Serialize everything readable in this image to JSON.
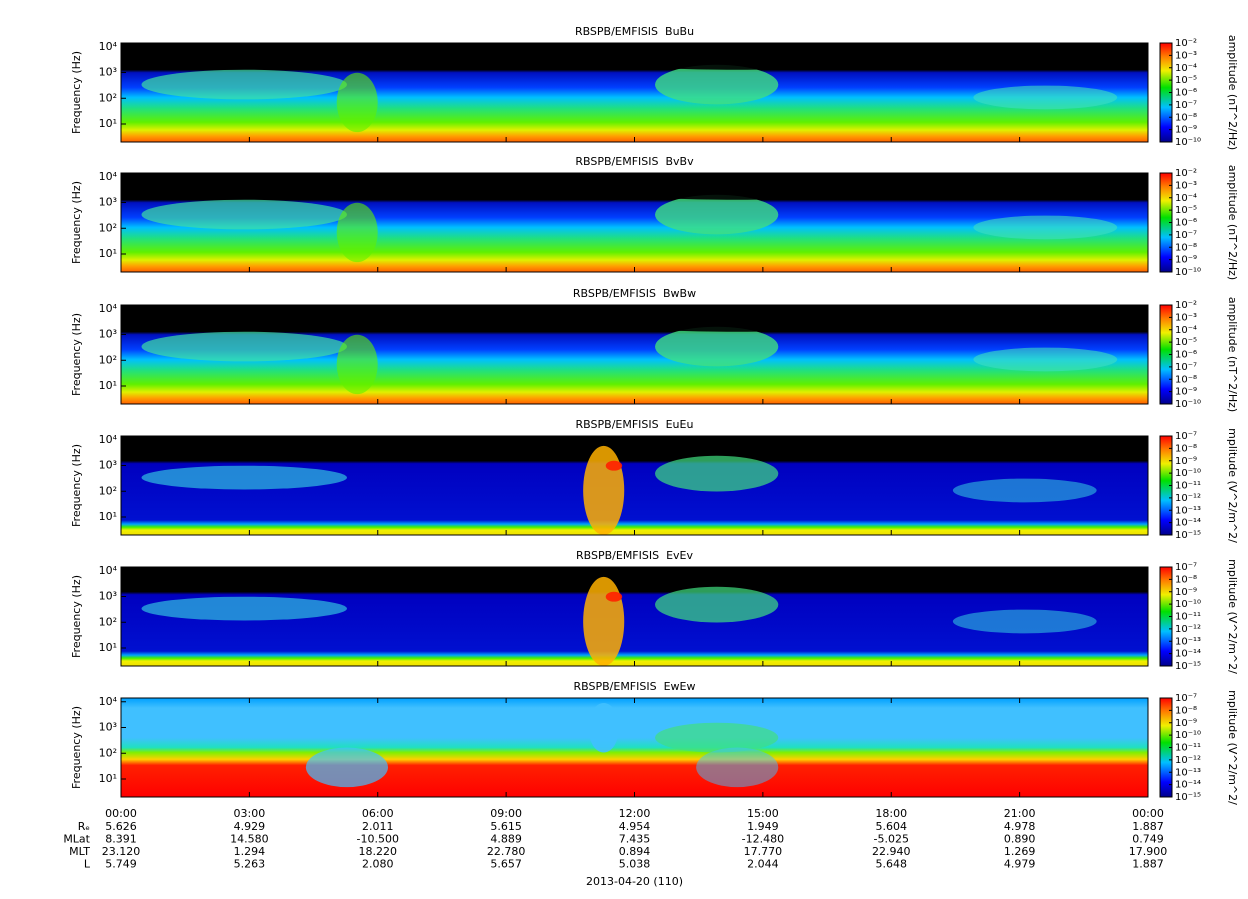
{
  "chart_data": [
    {
      "type": "spectrogram",
      "title": "RBSPB/EMFISIS  BuBu",
      "ylabel": "Frequency (Hz)",
      "log_y": true,
      "ylim": [
        2,
        14000
      ],
      "yticks": [
        {
          "value": 10,
          "label": "10¹"
        },
        {
          "value": 100,
          "label": "10²"
        },
        {
          "value": 1000,
          "label": "10³"
        },
        {
          "value": 10000,
          "label": "10⁴"
        }
      ],
      "zlabel": "amplitude (nT^2/Hz)",
      "zlim": [
        1e-10,
        0.01
      ],
      "zticks": [
        {
          "value": 0.01,
          "label": "10⁻²"
        },
        {
          "value": 0.001,
          "label": "10⁻³"
        },
        {
          "value": 0.0001,
          "label": "10⁻⁴"
        },
        {
          "value": 1e-05,
          "label": "10⁻⁵"
        },
        {
          "value": 1e-06,
          "label": "10⁻⁶"
        },
        {
          "value": 1e-07,
          "label": "10⁻⁷"
        },
        {
          "value": 1e-08,
          "label": "10⁻⁸"
        },
        {
          "value": 1e-09,
          "label": "10⁻⁹"
        },
        {
          "value": 1e-10,
          "label": "10⁻¹⁰"
        }
      ]
    },
    {
      "type": "spectrogram",
      "title": "RBSPB/EMFISIS  BvBv",
      "ylabel": "Frequency (Hz)",
      "log_y": true,
      "ylim": [
        2,
        14000
      ],
      "yticks": [
        {
          "value": 10,
          "label": "10¹"
        },
        {
          "value": 100,
          "label": "10²"
        },
        {
          "value": 1000,
          "label": "10³"
        },
        {
          "value": 10000,
          "label": "10⁴"
        }
      ],
      "zlabel": "amplitude (nT^2/Hz)",
      "zlim": [
        1e-10,
        0.01
      ],
      "zticks": [
        {
          "value": 0.01,
          "label": "10⁻²"
        },
        {
          "value": 0.001,
          "label": "10⁻³"
        },
        {
          "value": 0.0001,
          "label": "10⁻⁴"
        },
        {
          "value": 1e-05,
          "label": "10⁻⁵"
        },
        {
          "value": 1e-06,
          "label": "10⁻⁶"
        },
        {
          "value": 1e-07,
          "label": "10⁻⁷"
        },
        {
          "value": 1e-08,
          "label": "10⁻⁸"
        },
        {
          "value": 1e-09,
          "label": "10⁻⁹"
        },
        {
          "value": 1e-10,
          "label": "10⁻¹⁰"
        }
      ]
    },
    {
      "type": "spectrogram",
      "title": "RBSPB/EMFISIS  BwBw",
      "ylabel": "Frequency (Hz)",
      "log_y": true,
      "ylim": [
        2,
        14000
      ],
      "yticks": [
        {
          "value": 10,
          "label": "10¹"
        },
        {
          "value": 100,
          "label": "10²"
        },
        {
          "value": 1000,
          "label": "10³"
        },
        {
          "value": 10000,
          "label": "10⁴"
        }
      ],
      "zlabel": "amplitude (nT^2/Hz)",
      "zlim": [
        1e-10,
        0.01
      ],
      "zticks": [
        {
          "value": 0.01,
          "label": "10⁻²"
        },
        {
          "value": 0.001,
          "label": "10⁻³"
        },
        {
          "value": 0.0001,
          "label": "10⁻⁴"
        },
        {
          "value": 1e-05,
          "label": "10⁻⁵"
        },
        {
          "value": 1e-06,
          "label": "10⁻⁶"
        },
        {
          "value": 1e-07,
          "label": "10⁻⁷"
        },
        {
          "value": 1e-08,
          "label": "10⁻⁸"
        },
        {
          "value": 1e-09,
          "label": "10⁻⁹"
        },
        {
          "value": 1e-10,
          "label": "10⁻¹⁰"
        }
      ]
    },
    {
      "type": "spectrogram",
      "title": "RBSPB/EMFISIS  EuEu",
      "ylabel": "Frequency (Hz)",
      "log_y": true,
      "ylim": [
        2,
        14000
      ],
      "yticks": [
        {
          "value": 10,
          "label": "10¹"
        },
        {
          "value": 100,
          "label": "10²"
        },
        {
          "value": 1000,
          "label": "10³"
        },
        {
          "value": 10000,
          "label": "10⁴"
        }
      ],
      "zlabel": "mplitude (V^2/m^2/",
      "zlim": [
        1e-15,
        1e-07
      ],
      "zticks": [
        {
          "value": 1e-07,
          "label": "10⁻⁷"
        },
        {
          "value": 1e-08,
          "label": "10⁻⁸"
        },
        {
          "value": 1e-09,
          "label": "10⁻⁹"
        },
        {
          "value": 1e-10,
          "label": "10⁻¹⁰"
        },
        {
          "value": 1e-11,
          "label": "10⁻¹¹"
        },
        {
          "value": 1e-12,
          "label": "10⁻¹²"
        },
        {
          "value": 1e-13,
          "label": "10⁻¹³"
        },
        {
          "value": 1e-14,
          "label": "10⁻¹⁴"
        },
        {
          "value": 1e-15,
          "label": "10⁻¹⁵"
        }
      ]
    },
    {
      "type": "spectrogram",
      "title": "RBSPB/EMFISIS  EvEv",
      "ylabel": "Frequency (Hz)",
      "log_y": true,
      "ylim": [
        2,
        14000
      ],
      "yticks": [
        {
          "value": 10,
          "label": "10¹"
        },
        {
          "value": 100,
          "label": "10²"
        },
        {
          "value": 1000,
          "label": "10³"
        },
        {
          "value": 10000,
          "label": "10⁴"
        }
      ],
      "zlabel": "mplitude (V^2/m^2/",
      "zlim": [
        1e-15,
        1e-07
      ],
      "zticks": [
        {
          "value": 1e-07,
          "label": "10⁻⁷"
        },
        {
          "value": 1e-08,
          "label": "10⁻⁸"
        },
        {
          "value": 1e-09,
          "label": "10⁻⁹"
        },
        {
          "value": 1e-10,
          "label": "10⁻¹⁰"
        },
        {
          "value": 1e-11,
          "label": "10⁻¹¹"
        },
        {
          "value": 1e-12,
          "label": "10⁻¹²"
        },
        {
          "value": 1e-13,
          "label": "10⁻¹³"
        },
        {
          "value": 1e-14,
          "label": "10⁻¹⁴"
        },
        {
          "value": 1e-15,
          "label": "10⁻¹⁵"
        }
      ]
    },
    {
      "type": "spectrogram",
      "title": "RBSPB/EMFISIS  EwEw",
      "ylabel": "Frequency (Hz)",
      "log_y": true,
      "ylim": [
        2,
        14000
      ],
      "yticks": [
        {
          "value": 10,
          "label": "10¹"
        },
        {
          "value": 100,
          "label": "10²"
        },
        {
          "value": 1000,
          "label": "10³"
        },
        {
          "value": 10000,
          "label": "10⁴"
        }
      ],
      "zlabel": "mplitude (V^2/m^2/",
      "zlim": [
        1e-15,
        1e-07
      ],
      "zticks": [
        {
          "value": 1e-07,
          "label": "10⁻⁷"
        },
        {
          "value": 1e-08,
          "label": "10⁻⁸"
        },
        {
          "value": 1e-09,
          "label": "10⁻⁹"
        },
        {
          "value": 1e-10,
          "label": "10⁻¹⁰"
        },
        {
          "value": 1e-11,
          "label": "10⁻¹¹"
        },
        {
          "value": 1e-12,
          "label": "10⁻¹²"
        },
        {
          "value": 1e-13,
          "label": "10⁻¹³"
        },
        {
          "value": 1e-14,
          "label": "10⁻¹⁴"
        },
        {
          "value": 1e-15,
          "label": "10⁻¹⁵"
        }
      ]
    }
  ],
  "time_axis": {
    "xlim": [
      0,
      24
    ],
    "xticks": [
      {
        "value": 0,
        "label": "00:00"
      },
      {
        "value": 3,
        "label": "03:00"
      },
      {
        "value": 6,
        "label": "06:00"
      },
      {
        "value": 9,
        "label": "09:00"
      },
      {
        "value": 12,
        "label": "12:00"
      },
      {
        "value": 15,
        "label": "15:00"
      },
      {
        "value": 18,
        "label": "18:00"
      },
      {
        "value": 21,
        "label": "21:00"
      },
      {
        "value": 24,
        "label": "00:00"
      }
    ],
    "rows": [
      {
        "label": "Rₑ",
        "values": [
          "5.626",
          "4.929",
          "2.011",
          "5.615",
          "4.954",
          "1.949",
          "5.604",
          "4.978",
          "1.887"
        ]
      },
      {
        "label": "MLat",
        "values": [
          "8.391",
          "14.580",
          "-10.500",
          "4.889",
          "7.435",
          "-12.480",
          "-5.025",
          "0.890",
          "0.749"
        ]
      },
      {
        "label": "MLT",
        "values": [
          "23.120",
          "1.294",
          "18.220",
          "22.780",
          "0.894",
          "17.770",
          "22.940",
          "1.269",
          "17.900"
        ]
      },
      {
        "label": "L",
        "values": [
          "5.749",
          "5.263",
          "2.080",
          "5.657",
          "5.038",
          "2.044",
          "5.648",
          "4.979",
          "1.887"
        ]
      }
    ],
    "date": "2013-04-20 (110)"
  }
}
